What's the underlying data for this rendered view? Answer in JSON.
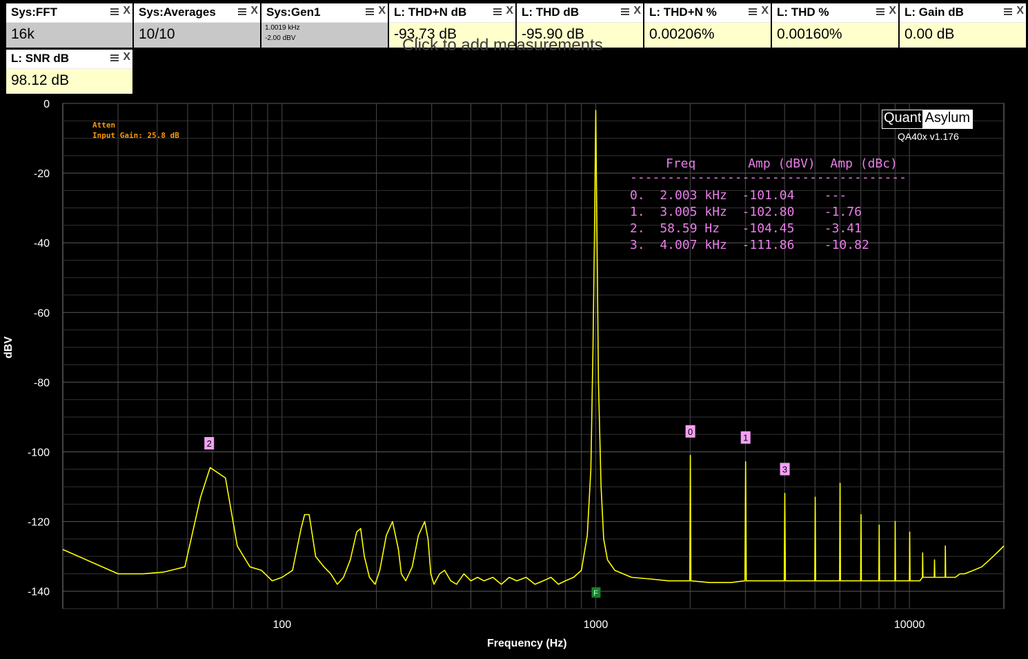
{
  "tiles": [
    {
      "title": "Sys:FFT",
      "value": "16k",
      "sys": true
    },
    {
      "title": "Sys:Averages",
      "value": "10/10",
      "sys": true
    },
    {
      "title": "Sys:Gen1",
      "value": "",
      "sub1": "1.0019 kHz",
      "sub2": "-2.00 dBV",
      "sys": true
    },
    {
      "title": "L: THD+N dB",
      "value": "-93.73 dB"
    },
    {
      "title": "L: THD dB",
      "value": "-95.90 dB"
    },
    {
      "title": "L: THD+N %",
      "value": "0.00206%"
    },
    {
      "title": "L: THD %",
      "value": "0.00160%"
    },
    {
      "title": "L: Gain dB",
      "value": "0.00 dB"
    },
    {
      "title": "L: SNR dB",
      "value": "98.12 dB"
    }
  ],
  "add_hint": "Click to add measurements",
  "logo": {
    "quant": "Quant",
    "asylum": "Asylum",
    "version": "QA40x v1.176"
  },
  "info": {
    "line1": "Atten",
    "line2": "Input Gain: 25.8 dB"
  },
  "harmonics_table": {
    "header": "Freq       Amp (dBV)  Amp (dBc)",
    "separator": "-------------------------------------",
    "rows": [
      "0.  2.003 kHz  -101.04    ---",
      "1.  3.005 kHz  -102.80    -1.76",
      "2.  58.59 Hz   -104.45    -3.41",
      "3.  4.007 kHz  -111.86    -10.82"
    ]
  },
  "colors": {
    "trace": "#ffff00",
    "marker_bg": "#f4a0f4",
    "marker_text": "#000000",
    "fundamental_marker": "#1a7f2a",
    "grid": "#4a4a4a"
  },
  "chart_data": {
    "type": "line",
    "xlabel": "Frequency (Hz)",
    "ylabel": "dBV",
    "xscale": "log",
    "xlim": [
      20,
      20000
    ],
    "ylim": [
      -145,
      0
    ],
    "xticks": [
      100,
      1000,
      10000
    ],
    "xtick_labels": [
      "100",
      "1000",
      "10000"
    ],
    "yticks": [
      0,
      -20,
      -40,
      -60,
      -80,
      -100,
      -120,
      -140
    ],
    "ytick_labels": [
      "0",
      "-20",
      "-40",
      "-60",
      "-80",
      "-100",
      "-120",
      "-140"
    ],
    "grid": true,
    "series": [
      {
        "x": [
          20,
          30,
          36,
          42,
          49,
          55,
          59,
          66,
          72,
          79,
          86,
          93,
          100,
          108,
          115,
          118,
          122,
          128,
          136,
          143,
          150,
          157,
          165,
          173,
          178,
          183,
          190,
          198,
          205,
          215,
          225,
          235,
          240,
          248,
          260,
          272,
          285,
          292,
          298,
          305,
          318,
          330,
          345,
          360,
          380,
          400,
          420,
          440,
          470,
          500,
          530,
          560,
          600,
          640,
          680,
          720,
          760,
          800,
          850,
          900,
          940,
          965,
          980,
          990,
          1000,
          1010,
          1020,
          1040,
          1060,
          1090,
          1150,
          1300,
          1500,
          1700,
          1900,
          1995,
          2003,
          2011,
          2300,
          2700,
          2990,
          3005,
          3020,
          3500,
          3990,
          4007,
          4025,
          4500,
          4990,
          5008,
          5025,
          5500,
          5990,
          6010,
          6030,
          6700,
          6990,
          7010,
          7030,
          7800,
          7990,
          8010,
          8030,
          8900,
          8990,
          9010,
          9030,
          9800,
          10000,
          10020,
          10050,
          10800,
          11000,
          11020,
          11050,
          11800,
          12000,
          12020,
          12050,
          12800,
          13000,
          13020,
          13050,
          14000,
          14500,
          15000,
          16000,
          17000,
          18000,
          19000,
          20000
        ],
        "y": [
          -128,
          -135,
          -135,
          -134.5,
          -133,
          -113,
          -104.5,
          -107.5,
          -127,
          -133,
          -134,
          -137,
          -136,
          -134,
          -122,
          -118,
          -118,
          -130,
          -133,
          -135,
          -138,
          -136,
          -131,
          -123,
          -122,
          -130,
          -136,
          -138,
          -134,
          -124,
          -120,
          -128,
          -135,
          -137,
          -133,
          -124,
          -120,
          -125,
          -135,
          -138,
          -135,
          -134,
          -137,
          -138,
          -135,
          -137,
          -136,
          -137,
          -136,
          -138,
          -136,
          -137,
          -136,
          -138,
          -137,
          -136,
          -138,
          -137,
          -136,
          -134,
          -124,
          -105,
          -70,
          -40,
          -2,
          -40,
          -80,
          -110,
          -125,
          -131,
          -134,
          -136,
          -136.5,
          -137,
          -137,
          -137,
          -101,
          -137,
          -137.5,
          -137.5,
          -137,
          -102.8,
          -137,
          -137,
          -137,
          -111.9,
          -137,
          -137,
          -137,
          -113,
          -137,
          -137,
          -137,
          -109,
          -137,
          -137,
          -137,
          -118,
          -137,
          -137,
          -137,
          -121,
          -137,
          -137,
          -137,
          -120,
          -137,
          -137,
          -137,
          -123,
          -137,
          -137,
          -136,
          -129,
          -136,
          -136,
          -136,
          -131,
          -136,
          -136,
          -136,
          -127,
          -136,
          -136,
          -135,
          -135,
          -134,
          -133,
          -131,
          -129,
          -127
        ]
      }
    ],
    "markers": [
      {
        "label": "0",
        "freq": 2003,
        "amp": -101.04
      },
      {
        "label": "1",
        "freq": 3005,
        "amp": -102.8
      },
      {
        "label": "2",
        "freq": 58.59,
        "amp": -104.45
      },
      {
        "label": "3",
        "freq": 4007,
        "amp": -111.86
      }
    ],
    "fundamental_marker": {
      "label": "F",
      "freq": 1000
    }
  }
}
